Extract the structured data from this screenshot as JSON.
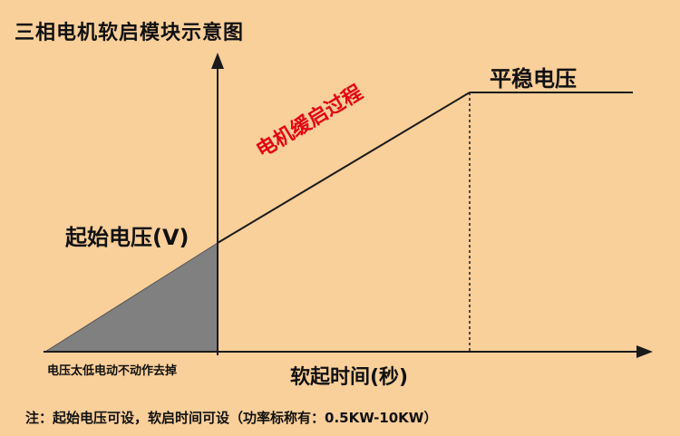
{
  "diagram": {
    "title": "三相电机软启模块示意图",
    "y_label": "起始电压(V)",
    "stable_label": "平稳电压",
    "process_label": "电机缓启过程",
    "low_voltage_label": "电压太低电动不动作去掉",
    "x_label": "软起时间(秒)",
    "note": "注：起始电压可设，软启时间可设（功率标称有：0.5KW-10KW）"
  },
  "colors": {
    "background": "#f9cf9a",
    "accent_text": "#e30613",
    "shaded_region": "#808080",
    "lines": "#1a1a1a"
  }
}
